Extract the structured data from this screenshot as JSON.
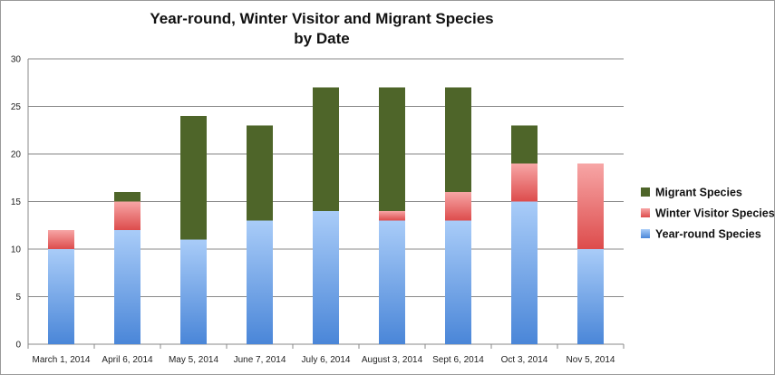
{
  "chart_data": {
    "type": "bar",
    "stacked": true,
    "title": [
      "Year-round, Winter Visitor and Migrant Species",
      "by Date"
    ],
    "categories": [
      "March 1, 2014",
      "April 6, 2014",
      "May 5, 2014",
      "June 7, 2014",
      "July 6, 2014",
      "August 3, 2014",
      "Sept 6, 2014",
      "Oct 3, 2014",
      "Nov 5, 2014"
    ],
    "series": [
      {
        "name": "Year-round Species",
        "values": [
          10,
          12,
          11,
          13,
          14,
          13,
          13,
          15,
          10
        ],
        "color": "#5b93dc"
      },
      {
        "name": "Winter Visitor Species",
        "values": [
          2,
          3,
          0,
          0,
          0,
          1,
          3,
          4,
          9
        ],
        "color": "#e86a6a"
      },
      {
        "name": "Migrant Species",
        "values": [
          0,
          1,
          13,
          10,
          13,
          13,
          11,
          4,
          0
        ],
        "color": "#4e6529"
      }
    ],
    "ylim": [
      0,
      30
    ],
    "yticks": [
      0,
      5,
      10,
      15,
      20,
      25,
      30
    ],
    "grid": true,
    "legend": "right"
  }
}
